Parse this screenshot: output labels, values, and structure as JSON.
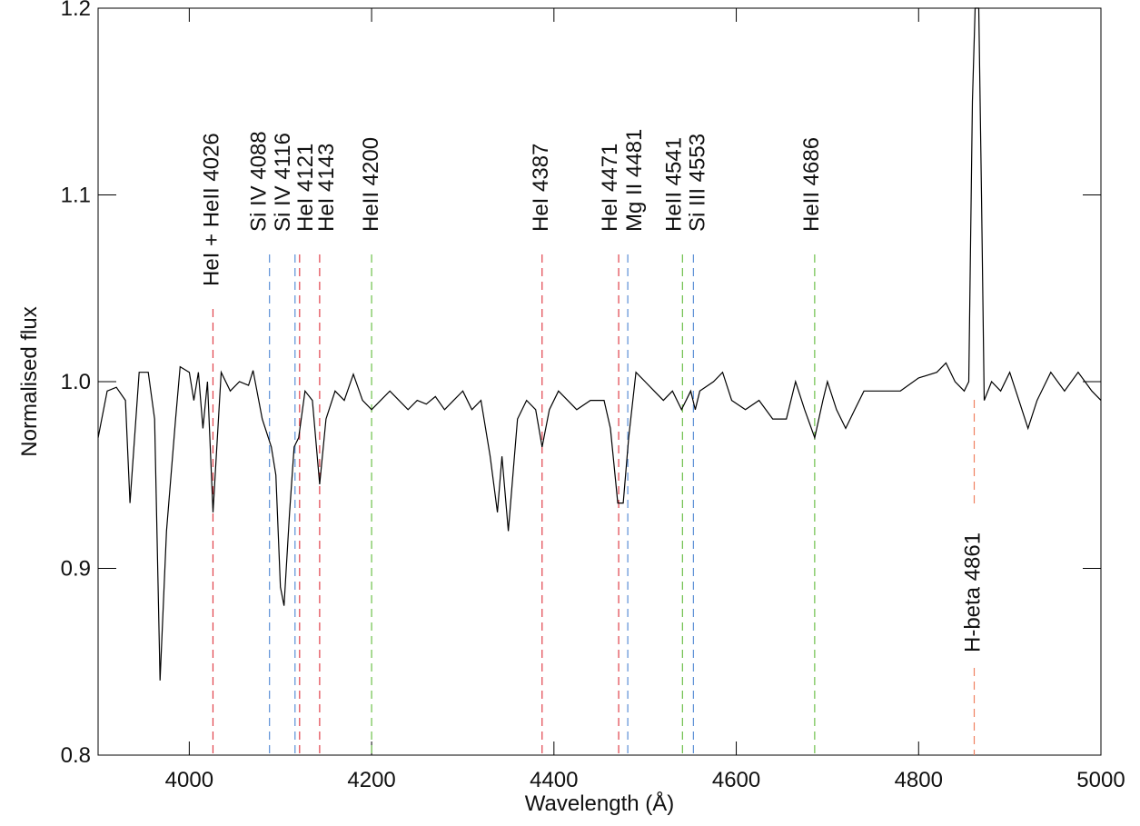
{
  "chart_data": {
    "type": "line",
    "x_label": "Wavelength (Å)",
    "y_label": "Normalised flux",
    "xlim": [
      3900,
      5000
    ],
    "ylim": [
      0.8,
      1.2
    ],
    "xticks": [
      4000,
      4200,
      4400,
      4600,
      4800,
      5000
    ],
    "yticks": [
      0.8,
      0.9,
      {
        "value": 1.0,
        "label": "1.0"
      },
      1.1,
      1.2
    ],
    "color": "#000000",
    "x": [
      3900,
      3910,
      3920,
      3930,
      3935,
      3945,
      3955,
      3962,
      3968,
      3975,
      3985,
      3990,
      4000,
      4005,
      4010,
      4015,
      4020,
      4026,
      4035,
      4045,
      4055,
      4065,
      4070,
      4080,
      4090,
      4095,
      4100,
      4104,
      4110,
      4115,
      4120,
      4127,
      4135,
      4143,
      4150,
      4160,
      4170,
      4180,
      4190,
      4200,
      4210,
      4220,
      4230,
      4240,
      4250,
      4260,
      4270,
      4280,
      4290,
      4300,
      4310,
      4320,
      4330,
      4338,
      4343,
      4350,
      4360,
      4370,
      4380,
      4387,
      4395,
      4405,
      4415,
      4425,
      4440,
      4455,
      4462,
      4470,
      4476,
      4482,
      4490,
      4500,
      4510,
      4520,
      4530,
      4540,
      4550,
      4555,
      4560,
      4575,
      4585,
      4595,
      4610,
      4625,
      4640,
      4655,
      4665,
      4675,
      4686,
      4695,
      4700,
      4710,
      4720,
      4730,
      4740,
      4760,
      4780,
      4800,
      4820,
      4830,
      4840,
      4850,
      4855,
      4859,
      4862,
      4866,
      4869,
      4872,
      4880,
      4890,
      4900,
      4910,
      4920,
      4930,
      4945,
      4960,
      4975,
      4990,
      5000
    ],
    "values": [
      0.97,
      0.995,
      0.997,
      0.99,
      0.935,
      1.005,
      1.005,
      0.98,
      0.84,
      0.92,
      0.98,
      1.008,
      1.005,
      0.99,
      1.005,
      0.975,
      1.0,
      0.93,
      1.005,
      0.995,
      1.0,
      0.998,
      1.006,
      0.98,
      0.965,
      0.95,
      0.89,
      0.88,
      0.93,
      0.965,
      0.97,
      0.995,
      0.99,
      0.945,
      0.98,
      0.995,
      0.99,
      1.004,
      0.99,
      0.985,
      0.99,
      0.995,
      0.99,
      0.985,
      0.99,
      0.988,
      0.992,
      0.985,
      0.99,
      0.995,
      0.985,
      0.99,
      0.96,
      0.93,
      0.96,
      0.92,
      0.98,
      0.99,
      0.985,
      0.965,
      0.985,
      0.995,
      0.99,
      0.985,
      0.99,
      0.99,
      0.975,
      0.935,
      0.935,
      0.97,
      1.005,
      1.0,
      0.995,
      0.99,
      0.995,
      0.985,
      0.995,
      0.985,
      0.995,
      1.0,
      1.005,
      0.99,
      0.985,
      0.99,
      0.98,
      0.98,
      1.0,
      0.985,
      0.97,
      0.99,
      1.0,
      0.985,
      0.975,
      0.985,
      0.995,
      0.995,
      0.995,
      1.002,
      1.005,
      1.01,
      1.0,
      0.995,
      1.0,
      1.15,
      1.2,
      1.2,
      1.1,
      0.99,
      1.0,
      0.995,
      1.005,
      0.99,
      0.975,
      0.99,
      1.005,
      0.995,
      1.005,
      0.995,
      0.99
    ],
    "annotations": [
      {
        "label": "HeI + HeII 4026",
        "wavelength": 4026,
        "color": "#e0404a"
      },
      {
        "label": "Si IV 4088",
        "wavelength": 4088,
        "color": "#5b8fd6"
      },
      {
        "label": "Si IV 4116",
        "wavelength": 4116,
        "color": "#5b8fd6"
      },
      {
        "label": "HeI 4121",
        "wavelength": 4121,
        "color": "#e0404a"
      },
      {
        "label": "HeI 4143",
        "wavelength": 4143,
        "color": "#e0404a"
      },
      {
        "label": "HeII 4200",
        "wavelength": 4200,
        "color": "#6cc04a"
      },
      {
        "label": "HeI 4387",
        "wavelength": 4387,
        "color": "#e0404a"
      },
      {
        "label": "HeI 4471",
        "wavelength": 4471,
        "color": "#e0404a"
      },
      {
        "label": "Mg II 4481",
        "wavelength": 4481,
        "color": "#5b8fd6"
      },
      {
        "label": "HeII 4541",
        "wavelength": 4541,
        "color": "#6cc04a"
      },
      {
        "label": "Si III 4553",
        "wavelength": 4553,
        "color": "#5b8fd6"
      },
      {
        "label": "HeII 4686",
        "wavelength": 4686,
        "color": "#6cc04a"
      },
      {
        "label": "H-beta 4861",
        "wavelength": 4861,
        "color": "#f08060"
      }
    ]
  }
}
